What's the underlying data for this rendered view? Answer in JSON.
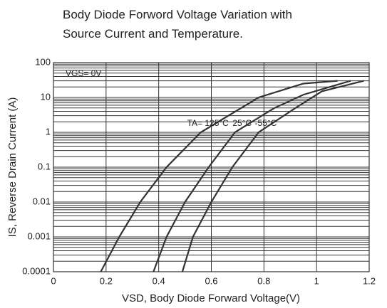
{
  "chart_data": {
    "type": "line",
    "title": [
      "Body Diode Forword Voltage Variation with",
      "Source Current and Temperature."
    ],
    "x_label": "VSD, Body Diode Forward Voltage(V)",
    "y_label": "IS, Reverse Drain Current (A)",
    "annotation": "VGS= 0V",
    "log_y": true,
    "grid": true,
    "xlim": [
      0,
      1.2
    ],
    "xticks": [
      0,
      0.2,
      0.4,
      0.6,
      0.8,
      1,
      1.2
    ],
    "ylim": [
      0.0001,
      100
    ],
    "yticks": [
      0.0001,
      0.001,
      0.01,
      0.1,
      1,
      10,
      100
    ],
    "series": [
      {
        "name": "TA= 125°C",
        "color": "#333333",
        "x": [
          0.18,
          0.25,
          0.33,
          0.43,
          0.56,
          0.78,
          0.95,
          1.08
        ],
        "values": [
          0.0001,
          0.001,
          0.01,
          0.1,
          1,
          10,
          25,
          30
        ]
      },
      {
        "name": "25°C",
        "color": "#333333",
        "x": [
          0.38,
          0.43,
          0.5,
          0.59,
          0.69,
          0.84,
          0.95,
          1.13
        ],
        "values": [
          0.0001,
          0.001,
          0.01,
          0.1,
          1,
          5,
          12,
          30
        ]
      },
      {
        "name": "-55°C",
        "color": "#333333",
        "x": [
          0.49,
          0.53,
          0.6,
          0.68,
          0.78,
          0.92,
          1.02,
          1.18
        ],
        "values": [
          0.0001,
          0.001,
          0.01,
          0.1,
          1,
          5,
          15,
          30
        ]
      }
    ]
  }
}
